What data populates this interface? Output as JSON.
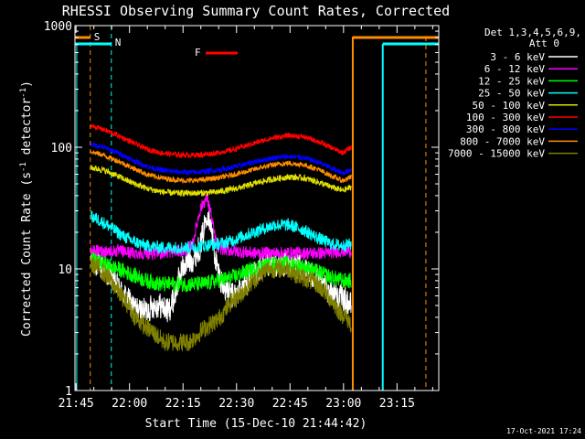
{
  "chart_data": {
    "type": "line",
    "title": "RHESSI Observing Summary Count Rates, Corrected",
    "xlabel": "Start Time (15-Dec-10 21:44:42)",
    "ylabel_main": "Corrected Count Rate (s",
    "ylabel_sup1": "-1",
    "ylabel_mid": " detector",
    "ylabel_sup2": "-1",
    "ylabel_end": ")",
    "x_unit": "minutes after 21:44:42",
    "xlim": [
      0,
      102
    ],
    "ylim": [
      1,
      1000
    ],
    "y_scale": "log",
    "x_ticks": [
      {
        "value": 0.3,
        "label": "21:45"
      },
      {
        "value": 15.3,
        "label": "22:00"
      },
      {
        "value": 30.3,
        "label": "22:15"
      },
      {
        "value": 45.3,
        "label": "22:30"
      },
      {
        "value": 60.3,
        "label": "22:45"
      },
      {
        "value": 75.3,
        "label": "23:00"
      },
      {
        "value": 90.3,
        "label": "23:15"
      }
    ],
    "y_ticks": [
      {
        "value": 1,
        "label": "1"
      },
      {
        "value": 10,
        "label": "10"
      },
      {
        "value": 100,
        "label": "100"
      },
      {
        "value": 1000,
        "label": "1000"
      }
    ],
    "legend": {
      "header1": "Det 1,3,4,5,6,9,",
      "header2": "Att 0",
      "placement": "right"
    },
    "series": [
      {
        "name": "3 - 6 keV",
        "color": "#ffffff",
        "x": [
          4.5,
          6,
          8,
          10,
          12,
          14,
          16,
          18,
          20,
          22,
          24,
          26,
          27,
          28,
          29,
          30,
          31,
          33,
          35,
          36,
          37,
          38,
          39,
          40,
          41,
          42,
          44,
          46,
          48,
          50,
          52,
          54,
          56,
          58,
          60,
          62,
          64,
          66,
          68,
          70,
          72,
          74,
          76,
          77.5
        ],
        "y": [
          11,
          11,
          10,
          9,
          7,
          6,
          5,
          4.5,
          4.5,
          5,
          5,
          4.5,
          5,
          6,
          8,
          10,
          11,
          12,
          15,
          20,
          30,
          25,
          14,
          10,
          8,
          7,
          6,
          6.5,
          7.5,
          9,
          10,
          10.5,
          11,
          11,
          11,
          10.5,
          10,
          9,
          8,
          7,
          6.5,
          6,
          5.5,
          5
        ]
      },
      {
        "name": "6 - 12 keV",
        "color": "#ff00ff",
        "x": [
          4.5,
          7,
          10,
          13,
          16,
          19,
          22,
          25,
          28,
          31,
          33,
          34,
          35,
          36,
          37,
          38,
          39,
          40,
          42,
          45,
          50,
          55,
          60,
          65,
          70,
          75,
          77.5
        ],
        "y": [
          14,
          14,
          14,
          14,
          13.5,
          13.5,
          13.5,
          13.5,
          14,
          14,
          16,
          22,
          30,
          35,
          38,
          30,
          20,
          15,
          14.5,
          14,
          13.5,
          13.5,
          13.5,
          13.5,
          13.5,
          14,
          14
        ]
      },
      {
        "name": "12 - 25 keV",
        "color": "#00ff00",
        "x": [
          4.5,
          8,
          12,
          16,
          20,
          24,
          28,
          32,
          36,
          40,
          44,
          48,
          52,
          56,
          60,
          64,
          68,
          72,
          75,
          77.5
        ],
        "y": [
          12,
          11,
          10,
          9,
          8,
          7.5,
          7.5,
          7.5,
          7.5,
          8,
          8.5,
          9.5,
          10.5,
          11,
          11,
          10.5,
          9.5,
          8.5,
          8,
          8
        ]
      },
      {
        "name": "25 - 50 keV",
        "color": "#00ffff",
        "x": [
          4.5,
          7,
          10,
          13,
          16,
          20,
          24,
          28,
          32,
          36,
          40,
          44,
          48,
          52,
          56,
          60,
          64,
          68,
          72,
          75,
          77.5
        ],
        "y": [
          27,
          25,
          22,
          19,
          17,
          15.5,
          15,
          15,
          15,
          15.5,
          16,
          17,
          19,
          21,
          23,
          23,
          21,
          18,
          16,
          15.5,
          16
        ]
      },
      {
        "name": "50 - 100 keV",
        "color": "#e0e000",
        "x": [
          4.5,
          8,
          12,
          16,
          20,
          24,
          28,
          32,
          36,
          40,
          44,
          48,
          52,
          56,
          60,
          64,
          68,
          72,
          75,
          77.5
        ],
        "y": [
          68,
          65,
          58,
          51,
          46,
          43,
          42,
          42,
          42,
          43,
          45,
          48,
          52,
          55,
          57,
          56,
          52,
          47,
          44,
          47
        ]
      },
      {
        "name": "100 - 300 keV",
        "color": "#ff0000",
        "x": [
          4.5,
          8,
          12,
          16,
          20,
          24,
          28,
          32,
          36,
          40,
          44,
          48,
          52,
          56,
          60,
          64,
          68,
          72,
          75,
          77.5
        ],
        "y": [
          150,
          140,
          125,
          110,
          97,
          90,
          87,
          86,
          87,
          90,
          95,
          103,
          112,
          120,
          125,
          122,
          112,
          99,
          90,
          100
        ]
      },
      {
        "name": "300 - 800 keV",
        "color": "#0000ff",
        "x": [
          4.5,
          8,
          12,
          16,
          20,
          24,
          28,
          32,
          36,
          40,
          44,
          48,
          52,
          56,
          60,
          64,
          68,
          72,
          75,
          77.5
        ],
        "y": [
          106,
          100,
          90,
          79,
          70,
          65,
          63,
          62,
          63,
          65,
          68,
          73,
          78,
          82,
          84,
          82,
          76,
          67,
          61,
          66
        ]
      },
      {
        "name": "800 - 7000 keV",
        "color": "#ff8c00",
        "x": [
          4.5,
          8,
          12,
          16,
          20,
          24,
          28,
          32,
          36,
          40,
          44,
          48,
          52,
          56,
          60,
          64,
          68,
          72,
          75,
          77.5
        ],
        "y": [
          92,
          86,
          77,
          68,
          60,
          56,
          54,
          53,
          54,
          56,
          59,
          63,
          68,
          72,
          74,
          72,
          66,
          58,
          53,
          57
        ]
      },
      {
        "name": "7000 - 15000 keV",
        "color": "#808000",
        "x": [
          4.5,
          7,
          10,
          13,
          15,
          17,
          19,
          22,
          25,
          28,
          30,
          32,
          34,
          36,
          38,
          40,
          42,
          44,
          46,
          48,
          50,
          52,
          54,
          56,
          58,
          60,
          62,
          64,
          66,
          68,
          70,
          72,
          74,
          76,
          77.5
        ],
        "y": [
          11,
          10,
          8,
          6,
          5,
          4,
          3.5,
          3,
          2.5,
          2.5,
          2.5,
          2.5,
          2.8,
          3.2,
          3.5,
          3.8,
          4.5,
          5.5,
          6,
          7,
          8,
          9,
          10,
          10,
          10,
          10,
          9,
          8.5,
          8,
          7.5,
          6.5,
          5.5,
          4.5,
          4,
          3.5
        ]
      }
    ],
    "annotations": [
      {
        "label": "S",
        "color": "#ff8c00",
        "x": 4.3
      },
      {
        "label": "N",
        "color": "#00ffff",
        "x": 10.2
      },
      {
        "label": "F",
        "color": "#ff0000"
      }
    ],
    "timestamp": "17-Oct-2021 17:24"
  }
}
